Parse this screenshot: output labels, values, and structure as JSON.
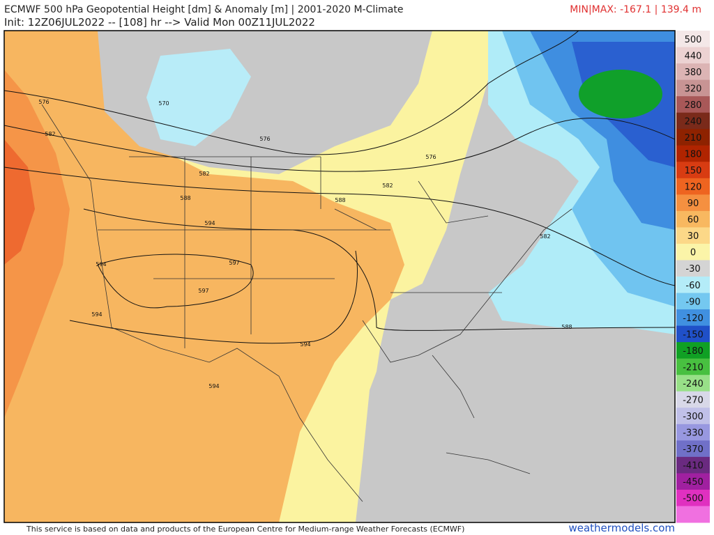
{
  "header": {
    "title": "ECMWF 500 hPa Geopotential Height [dm] & Anomaly [m] | 2001-2020 M-Climate",
    "init": "Init: 12Z06JUL2022 -- [108] hr --> Valid Mon 00Z11JUL2022",
    "minmax": "MIN|MAX: -167.1 | 139.4 m"
  },
  "colorbar": {
    "labels": [
      "500",
      "440",
      "380",
      "320",
      "280",
      "240",
      "210",
      "180",
      "150",
      "120",
      "90",
      "60",
      "30",
      "0",
      "-30",
      "-60",
      "-90",
      "-120",
      "-150",
      "-180",
      "-210",
      "-240",
      "-270",
      "-300",
      "-330",
      "-370",
      "-410",
      "-450",
      "-500"
    ]
  },
  "contour_labels": [
    "576",
    "582",
    "570",
    "576",
    "582",
    "588",
    "594",
    "597",
    "594",
    "597",
    "594",
    "588",
    "582",
    "576",
    "582",
    "588",
    "594",
    "594"
  ],
  "footer": {
    "notice": "This service is based on data and products of the European Centre for Medium-range Weather Forecasts (ECMWF)",
    "brand": "weathermodels.com"
  }
}
